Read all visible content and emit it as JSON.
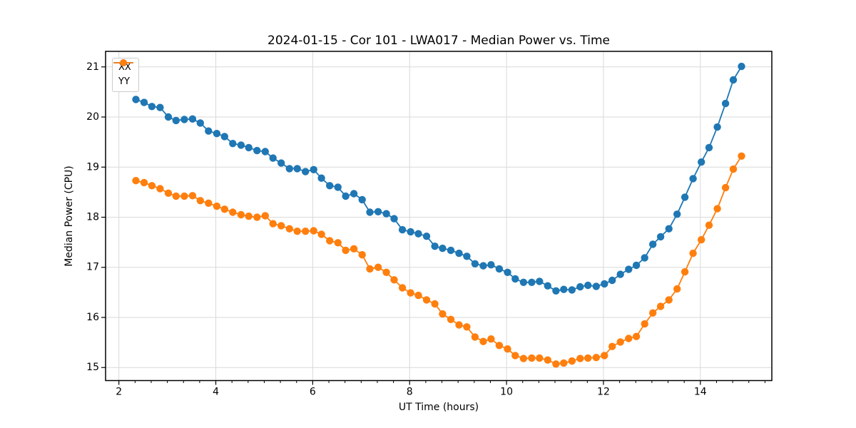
{
  "figure": {
    "background": "#ffffff",
    "frame_color": "#000000",
    "grid_color": "#d9d9d9"
  },
  "chart_data": {
    "type": "line",
    "title": "2024-01-15 - Cor 101 - LWA017 - Median Power vs. Time",
    "xlabel": "UT Time (hours)",
    "ylabel": "Median Power (CPU)",
    "xlim": [
      1.725,
      15.475
    ],
    "ylim": [
      14.74,
      21.31
    ],
    "x_major_ticks": [
      2,
      4,
      6,
      8,
      10,
      12,
      14
    ],
    "x_minor_tick_step": 0.33333,
    "y_major_ticks": [
      15,
      16,
      17,
      18,
      19,
      20,
      21
    ],
    "grid": true,
    "legend_position": "upper-left",
    "marker": "circle",
    "x": [
      2.35,
      2.52,
      2.68,
      2.85,
      3.02,
      3.18,
      3.35,
      3.52,
      3.68,
      3.85,
      4.02,
      4.18,
      4.35,
      4.52,
      4.68,
      4.85,
      5.02,
      5.18,
      5.35,
      5.52,
      5.68,
      5.85,
      6.02,
      6.18,
      6.35,
      6.52,
      6.68,
      6.85,
      7.02,
      7.18,
      7.35,
      7.52,
      7.68,
      7.85,
      8.02,
      8.18,
      8.35,
      8.52,
      8.68,
      8.85,
      9.02,
      9.18,
      9.35,
      9.52,
      9.68,
      9.85,
      10.02,
      10.18,
      10.35,
      10.52,
      10.68,
      10.85,
      11.02,
      11.18,
      11.35,
      11.52,
      11.68,
      11.85,
      12.02,
      12.18,
      12.35,
      12.52,
      12.68,
      12.85,
      13.02,
      13.18,
      13.35,
      13.52,
      13.68,
      13.85,
      14.02,
      14.18,
      14.35,
      14.52,
      14.68,
      14.85
    ],
    "series": [
      {
        "name": "XX",
        "color": "#1f77b4",
        "values": [
          20.35,
          20.29,
          20.21,
          20.19,
          20.0,
          19.93,
          19.95,
          19.96,
          19.88,
          19.72,
          19.67,
          19.61,
          19.47,
          19.44,
          19.39,
          19.33,
          19.31,
          19.18,
          19.08,
          18.97,
          18.97,
          18.91,
          18.95,
          18.78,
          18.63,
          18.6,
          18.42,
          18.47,
          18.35,
          18.1,
          18.11,
          18.07,
          17.97,
          17.75,
          17.71,
          17.67,
          17.62,
          17.42,
          17.38,
          17.34,
          17.28,
          17.22,
          17.07,
          17.03,
          17.05,
          16.97,
          16.9,
          16.77,
          16.7,
          16.7,
          16.72,
          16.63,
          16.53,
          16.56,
          16.55,
          16.61,
          16.64,
          16.62,
          16.67,
          16.74,
          16.86,
          16.96,
          17.04,
          17.19,
          17.46,
          17.61,
          17.77,
          18.06,
          18.4,
          18.77,
          19.1,
          19.39,
          19.8,
          20.27,
          20.74,
          21.01
        ]
      },
      {
        "name": "YY",
        "color": "#ff7f0e",
        "values": [
          18.73,
          18.69,
          18.63,
          18.57,
          18.48,
          18.42,
          18.42,
          18.43,
          18.33,
          18.28,
          18.22,
          18.16,
          18.1,
          18.05,
          18.02,
          18.0,
          18.03,
          17.87,
          17.83,
          17.77,
          17.72,
          17.72,
          17.73,
          17.66,
          17.53,
          17.49,
          17.34,
          17.37,
          17.25,
          16.97,
          17.0,
          16.9,
          16.75,
          16.59,
          16.49,
          16.44,
          16.35,
          16.27,
          16.07,
          15.96,
          15.85,
          15.81,
          15.61,
          15.52,
          15.57,
          15.44,
          15.37,
          15.24,
          15.18,
          15.19,
          15.19,
          15.15,
          15.07,
          15.09,
          15.13,
          15.18,
          15.19,
          15.2,
          15.24,
          15.42,
          15.51,
          15.58,
          15.62,
          15.87,
          16.09,
          16.22,
          16.35,
          16.57,
          16.91,
          17.28,
          17.55,
          17.84,
          18.17,
          18.59,
          18.96,
          19.22
        ]
      }
    ]
  }
}
